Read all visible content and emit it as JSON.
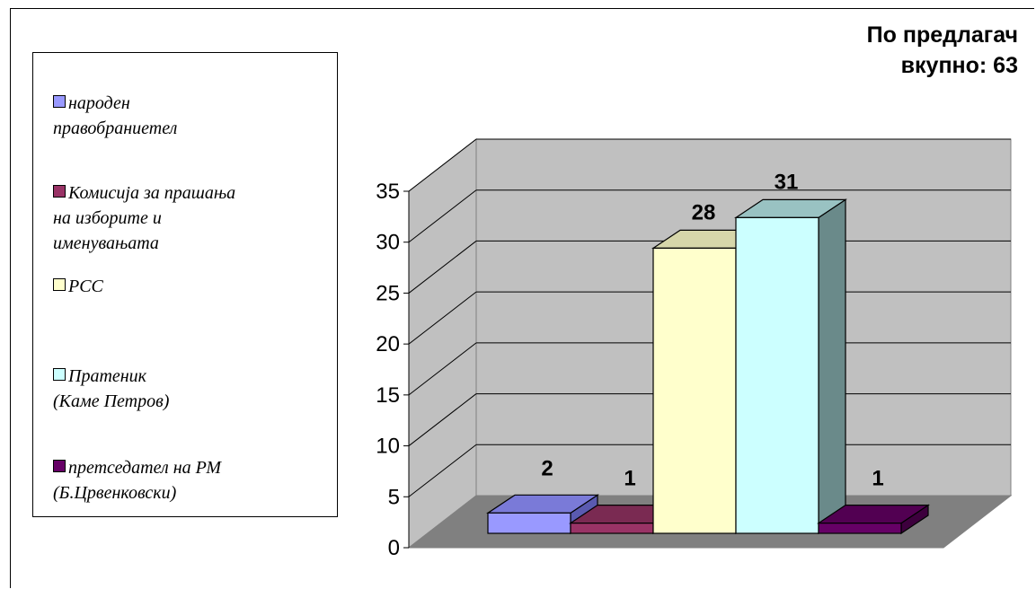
{
  "chart_data": {
    "type": "bar",
    "title": "По предлагач",
    "subtitle": "вкупно: 63",
    "categories": [
      "народен правобраниетел",
      "Комисија за прашања на изборите и именувањата",
      "РСС",
      "Пратеник (Каме Петров)",
      "претседател на РМ (Б.Црвенковски)"
    ],
    "values": [
      2,
      1,
      28,
      31,
      1
    ],
    "data_labels": [
      "2",
      "1",
      "28",
      "31",
      "1"
    ],
    "ylim": [
      0,
      35
    ],
    "yticks": [
      "0",
      "5",
      "10",
      "15",
      "20",
      "25",
      "30",
      "35"
    ],
    "grid": true,
    "legend_position": "left",
    "colors": [
      "#9999ff",
      "#993366",
      "#ffffcc",
      "#ccffff",
      "#660066"
    ],
    "side_colors": [
      "#5a5ab0",
      "#5e1f3e",
      "#b8b890",
      "#6a8a8a",
      "#3d003d"
    ],
    "top_colors": [
      "#7a7ad8",
      "#7a2a52",
      "#d6d6aa",
      "#99c2c2",
      "#520052"
    ],
    "three_d": true
  },
  "legend": [
    {
      "label": "народен\nправобраниетел"
    },
    {
      "label": "Комисија за прашања\nна изборите и\nименувањата"
    },
    {
      "label": "РСС"
    },
    {
      "label": "Пратеник\n(Каме Петров)"
    },
    {
      "label": "претседател на РМ\n(Б.Црвенковски)"
    }
  ]
}
